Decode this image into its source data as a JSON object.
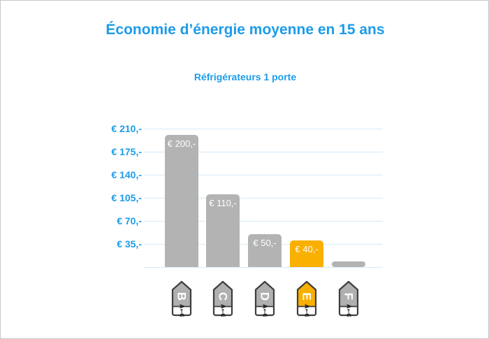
{
  "title": "Économie d’énergie moyenne en 15 ans",
  "subtitle": "Réfrigérateurs 1 porte",
  "colors": {
    "title": "#1c9ce9",
    "axis_labels": "#1c9ce9",
    "gridline": "#d5eaf7",
    "bar_default": "#b3b3b3",
    "bar_highlight": "#f9b000",
    "bar_value_text": "#ffffff",
    "tag_outline": "#3e3e3d",
    "tag_letter_text": "#ffffff",
    "tag_scale_text": "#1a1a1a",
    "tag_strip_background": "#ffffff",
    "frame_border": "#c6c6c6",
    "background": "#ffffff"
  },
  "chart_data": {
    "type": "bar",
    "title": "Économie d’énergie moyenne en 15 ans",
    "subtitle": "Réfrigérateurs 1 porte",
    "categories": [
      "B",
      "C",
      "D",
      "E",
      "F"
    ],
    "values": [
      200,
      110,
      50,
      40,
      8
    ],
    "bar_value_labels": [
      "€ 200,-",
      "€ 110,-",
      "€ 50,-",
      "€ 40,-",
      ""
    ],
    "bar_colors": [
      "#b3b3b3",
      "#b3b3b3",
      "#b3b3b3",
      "#f9b000",
      "#b3b3b3"
    ],
    "highlighted_category": "E",
    "unit": "EUR",
    "xlabel": "",
    "ylabel": "",
    "y_tick_labels": [
      "€ 210,-",
      "€ 175,-",
      "€ 140,-",
      "€ 105,-",
      "€ 70,-",
      "€ 35,-"
    ],
    "y_tick_values": [
      210,
      175,
      140,
      105,
      70,
      35
    ],
    "ylim": [
      0,
      222
    ],
    "grid": true,
    "legend": false,
    "x_axis_icons": [
      {
        "letter": "B",
        "scale_text": "A←G",
        "color": "#b0b0b0"
      },
      {
        "letter": "C",
        "scale_text": "A←G",
        "color": "#b0b0b0"
      },
      {
        "letter": "D",
        "scale_text": "A←G",
        "color": "#b0b0b0"
      },
      {
        "letter": "E",
        "scale_text": "A←G",
        "color": "#f9b000"
      },
      {
        "letter": "F",
        "scale_text": "A←G",
        "color": "#b0b0b0"
      }
    ]
  }
}
